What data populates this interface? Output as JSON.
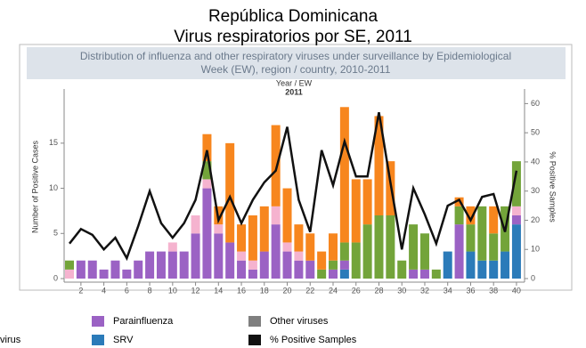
{
  "chart_data": {
    "type": "bar",
    "title": "República Dominicana",
    "subtitle": "Virus respiratorios por SE, 2011",
    "banner": [
      "Distribution of influenza and other respiratory viruses under surveillance by Epidemiological",
      "Week (EW), region / country, 2010-2011"
    ],
    "x_label": "Year / EW",
    "x_group": "2011",
    "y_label": "Number of Positive Cases",
    "y2_label": "% Positive Samples",
    "legend_fragment": "virus",
    "categories": [
      null,
      2,
      null,
      4,
      null,
      6,
      null,
      8,
      null,
      10,
      null,
      12,
      null,
      14,
      null,
      16,
      null,
      18,
      null,
      20,
      null,
      22,
      null,
      24,
      null,
      26,
      null,
      28,
      null,
      30,
      null,
      32,
      null,
      34,
      null,
      36,
      null,
      38,
      null,
      40
    ],
    "ylim": [
      0,
      21
    ],
    "yticks": [
      0,
      5,
      10,
      15
    ],
    "y2lim": [
      0,
      65
    ],
    "y2ticks": [
      0,
      10,
      20,
      30,
      40,
      50,
      60
    ],
    "series": [
      {
        "name": "SRV",
        "color": "#2b7bb9",
        "values": [
          0,
          0,
          0,
          0,
          0,
          0,
          0,
          0,
          0,
          0,
          0,
          0,
          0,
          0,
          0,
          0,
          0,
          0,
          0,
          0,
          0,
          0,
          0,
          0,
          1,
          0,
          0,
          0,
          0,
          0,
          0,
          0,
          0,
          3,
          0,
          3,
          2,
          2,
          3,
          6
        ]
      },
      {
        "name": "Parainfluenza",
        "color": "#9b62c4",
        "values": [
          0,
          2,
          2,
          1,
          2,
          1,
          2,
          3,
          3,
          3,
          3,
          5,
          10,
          5,
          4,
          2,
          1,
          3,
          6,
          3,
          2,
          2,
          0,
          1,
          1,
          0,
          0,
          0,
          0,
          0,
          1,
          1,
          0,
          0,
          6,
          0,
          0,
          0,
          0,
          1
        ]
      },
      {
        "color": "#f5b3cf",
        "values": [
          1,
          0,
          0,
          0,
          0,
          0,
          0,
          0,
          0,
          1,
          0,
          2,
          1,
          1,
          0,
          1,
          1,
          0,
          2,
          1,
          1,
          0,
          0,
          0,
          0,
          0,
          0,
          0,
          0,
          0,
          0,
          0,
          0,
          0,
          0,
          0,
          0,
          0,
          0,
          1
        ]
      },
      {
        "color": "#73a43a",
        "values": [
          1,
          0,
          0,
          0,
          0,
          0,
          0,
          0,
          0,
          0,
          0,
          0,
          2,
          0,
          0,
          0,
          0,
          0,
          0,
          0,
          0,
          0,
          1,
          1,
          2,
          4,
          6,
          7,
          7,
          2,
          5,
          4,
          1,
          0,
          2,
          3,
          6,
          3,
          5,
          5
        ]
      },
      {
        "color": "#f7861e",
        "values": [
          0,
          0,
          0,
          0,
          0,
          0,
          0,
          0,
          0,
          0,
          0,
          0,
          3,
          2,
          11,
          3,
          5,
          5,
          9,
          6,
          3,
          3,
          2,
          3,
          15,
          7,
          5,
          11,
          6,
          0,
          0,
          0,
          0,
          0,
          1,
          2,
          0,
          3,
          0,
          0
        ]
      },
      {
        "name": "Other viruses",
        "color": "#7f7f7f",
        "values": [
          0,
          0,
          0,
          0,
          0,
          0,
          0,
          0,
          0,
          0,
          0,
          0,
          0,
          0,
          0,
          0,
          0,
          0,
          0,
          0,
          0,
          0,
          0,
          0,
          0,
          0,
          0,
          0,
          0,
          0,
          0,
          0,
          0,
          0,
          0,
          0,
          0,
          0,
          0,
          0
        ]
      },
      {
        "name": "% Positive Samples",
        "type": "line",
        "axis": "y2",
        "color": "#111111",
        "values": [
          12,
          17,
          15,
          10,
          14,
          7,
          18,
          30,
          19,
          14,
          19,
          27,
          44,
          20,
          28,
          19,
          27,
          33,
          37,
          52,
          27,
          16,
          44,
          32,
          47,
          35,
          35,
          57,
          33,
          10,
          31,
          22,
          12,
          25,
          27,
          20,
          28,
          29,
          16,
          37
        ]
      }
    ]
  }
}
